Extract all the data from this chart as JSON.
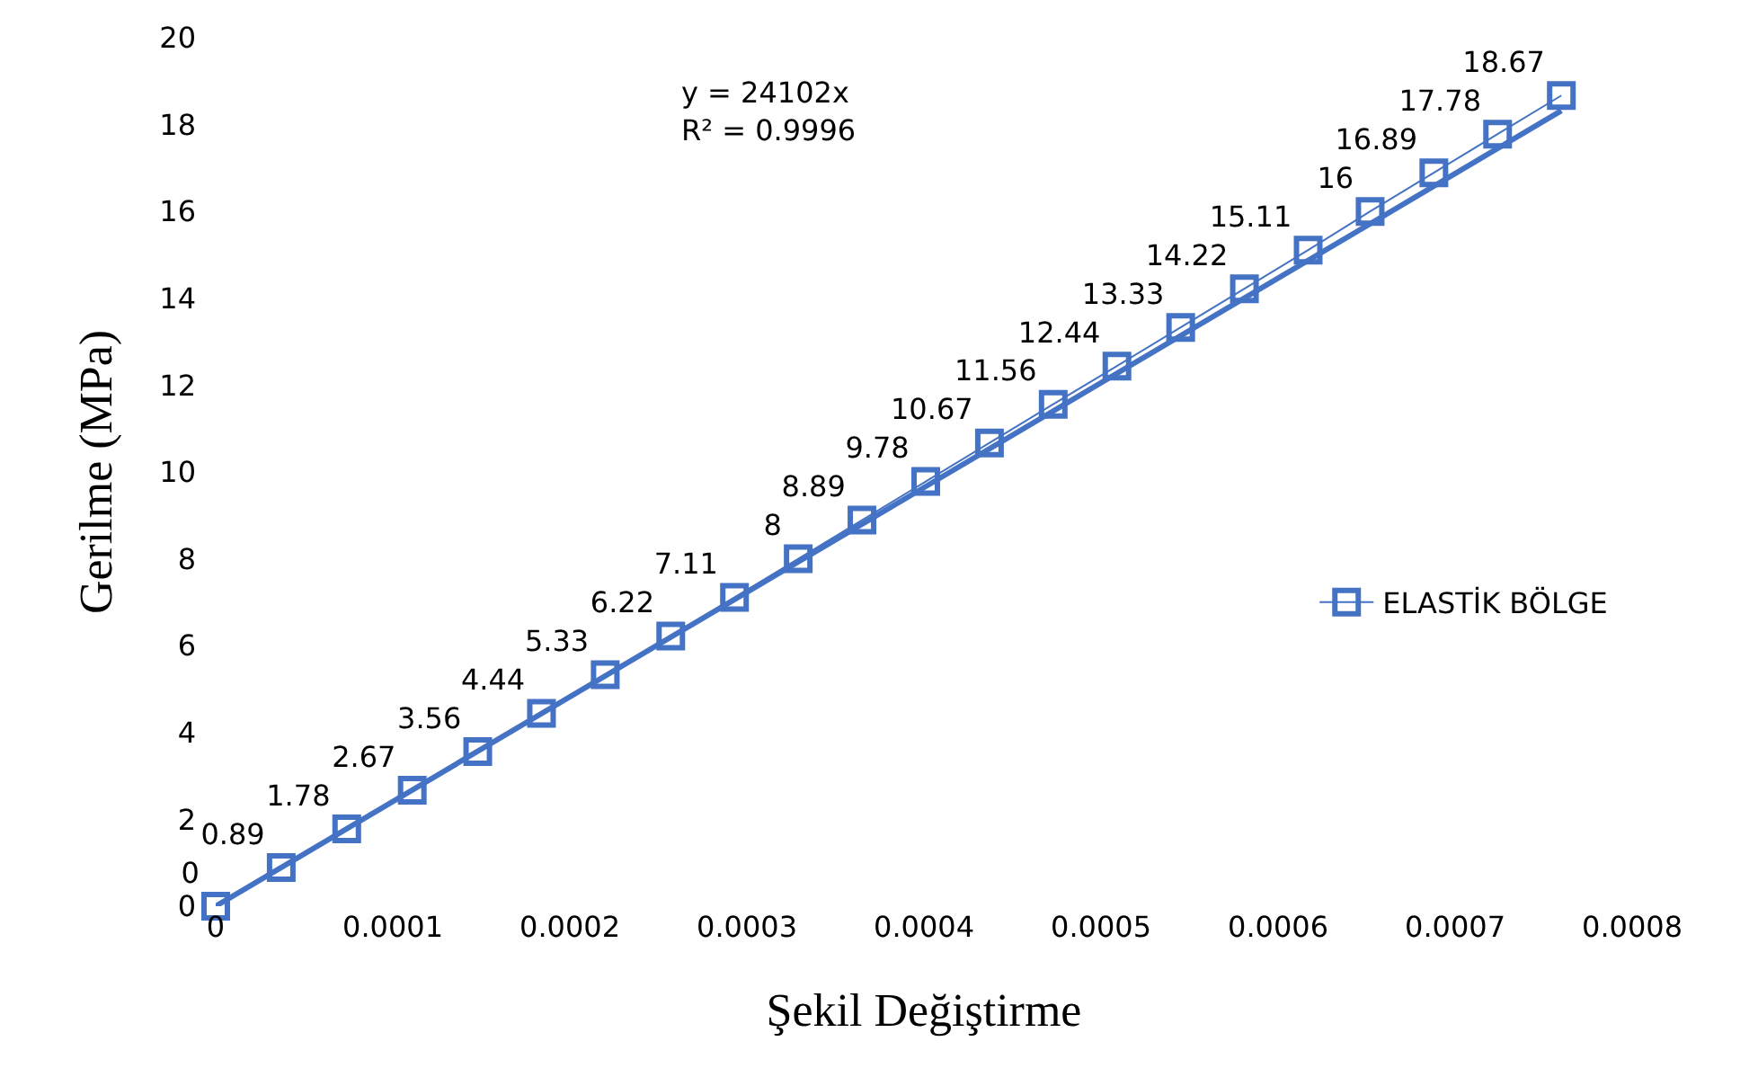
{
  "chart_data": {
    "type": "line",
    "xlabel": "Şekil Değiştirme",
    "ylabel": "Gerilme (MPa)",
    "xlim": [
      0,
      0.0008
    ],
    "xticks": [
      0,
      0.0001,
      0.0002,
      0.0003,
      0.0004,
      0.0005,
      0.0006,
      0.0007,
      0.0008
    ],
    "ylim": [
      0,
      20
    ],
    "yticks": [
      0,
      2,
      4,
      6,
      8,
      10,
      12,
      14,
      16,
      18,
      20
    ],
    "legend": "right",
    "marker": "square",
    "line_style": "solid",
    "annotations": [
      "y = 24102x\nR² = 0.9996"
    ],
    "series": [
      {
        "name": "ELASTİK BÖLGE",
        "color": "#4472c4",
        "data_labels": true,
        "x": [
          0,
          3.7e-05,
          7.4e-05,
          0.000111,
          0.000148,
          0.000184,
          0.00022,
          0.000257,
          0.000293,
          0.000329,
          0.000365,
          0.000401,
          0.000437,
          0.000473,
          0.000509,
          0.000545,
          0.000581,
          0.000617,
          0.000652,
          0.000688,
          0.000724,
          0.00076
        ],
        "values": [
          0,
          0.89,
          1.78,
          2.67,
          3.56,
          4.44,
          5.33,
          6.22,
          7.11,
          8,
          8.89,
          9.78,
          10.67,
          11.56,
          12.44,
          13.33,
          14.22,
          15.11,
          16,
          16.89,
          17.78,
          18.67
        ]
      },
      {
        "type": "line",
        "color": "#4472c4",
        "marker": "none",
        "x": [
          0,
          0.00076
        ],
        "values": [
          0,
          18.32
        ]
      }
    ]
  }
}
